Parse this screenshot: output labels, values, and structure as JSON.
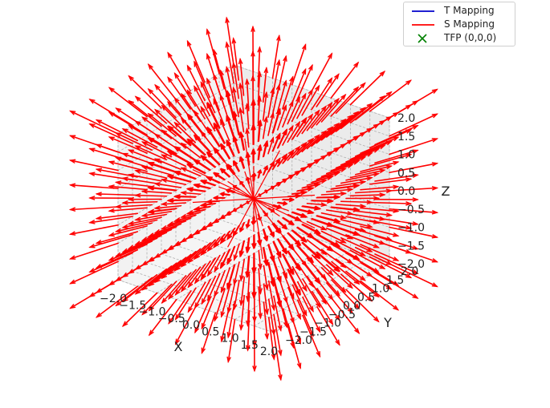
{
  "chart_data": {
    "type": "quiver3d",
    "description_of_field": "radial vector field pointing outward from the origin",
    "xlabel": "X",
    "ylabel": "Y",
    "zlabel": "Z",
    "xlim": [
      -2.0,
      2.0
    ],
    "ylim": [
      -2.0,
      2.0
    ],
    "zlim": [
      -2.0,
      2.0
    ],
    "xticks": [
      "−2.0",
      "−1.5",
      "−1.0",
      "−0.5",
      "0.0",
      "0.5",
      "1.0",
      "1.5",
      "2.0"
    ],
    "yticks": [
      "−2.0",
      "−1.5",
      "−1.0",
      "−0.5",
      "0.0",
      "0.5",
      "1.0",
      "1.5",
      "2.0"
    ],
    "zticks": [
      "−2.0",
      "−1.5",
      "−1.0",
      "−0.5",
      "0.0",
      "0.5",
      "1.0",
      "1.5",
      "2.0"
    ],
    "grid": true,
    "grid_values": [
      -2.0,
      -1.5,
      -1.0,
      -0.5,
      0.0,
      0.5,
      1.0,
      1.5,
      2.0
    ],
    "arrow_scale": 0.35,
    "series": [
      {
        "name": "T Mapping",
        "color": "#0000cc",
        "marker": "line"
      },
      {
        "name": "S Mapping",
        "color": "#ff0000",
        "marker": "line"
      },
      {
        "name": "TFP (0,0,0)",
        "color": "#008000",
        "marker": "x",
        "point": [
          0,
          0,
          0
        ]
      }
    ],
    "legend_position": "top-right"
  }
}
